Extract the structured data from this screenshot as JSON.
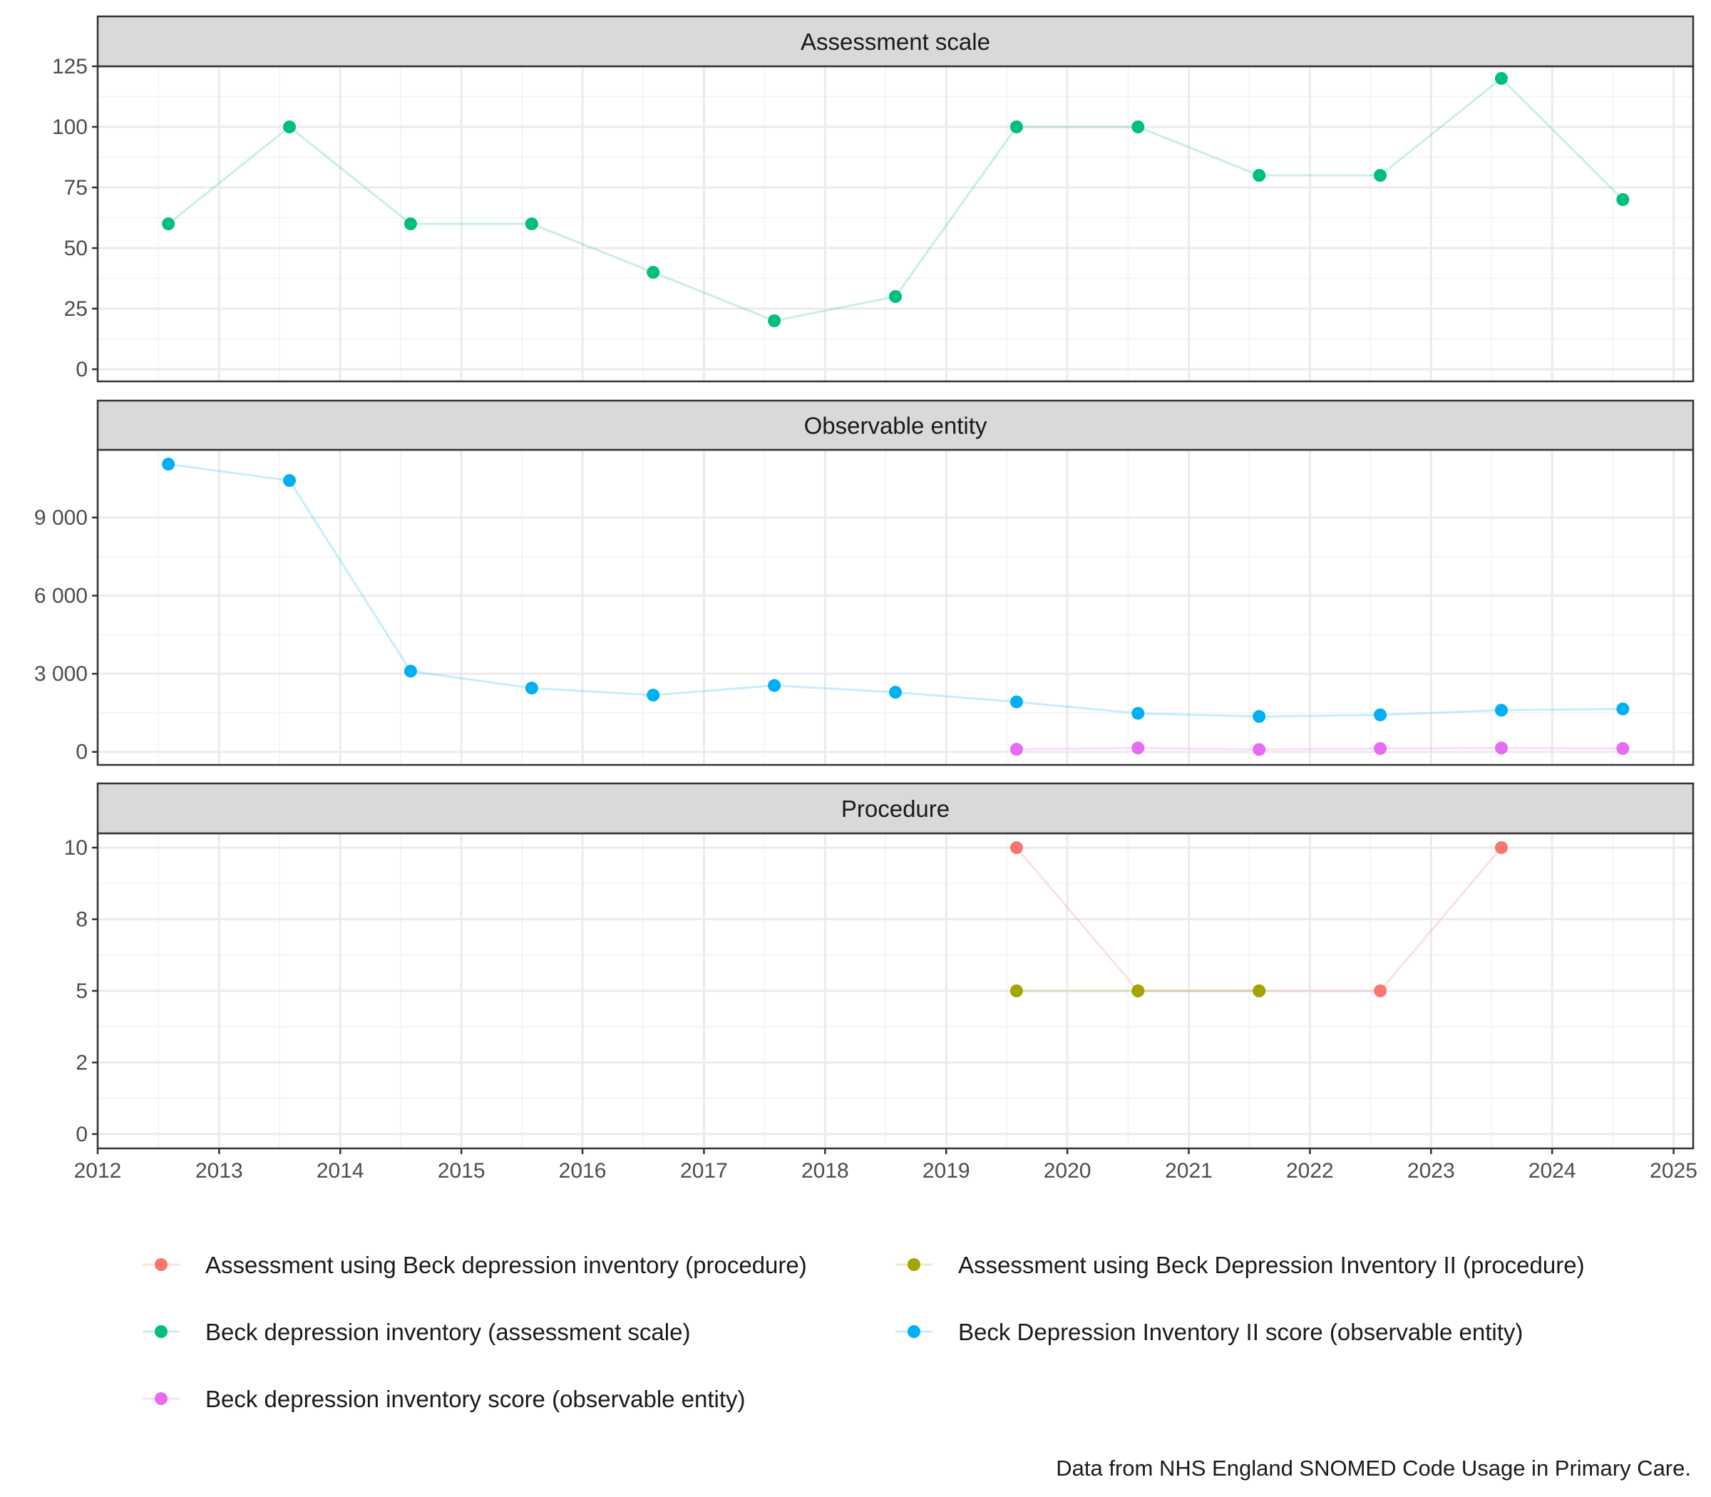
{
  "chart_data": {
    "type": "line",
    "caption": "Data from NHS England SNOMED Code Usage in Primary Care.",
    "x_axis": {
      "range": [
        "2012-01-01",
        "2025-03-01"
      ],
      "ticks": [
        "2012",
        "2013",
        "2014",
        "2015",
        "2016",
        "2017",
        "2018",
        "2019",
        "2020",
        "2021",
        "2022",
        "2023",
        "2024",
        "2025"
      ]
    },
    "legend": {
      "position": "bottom",
      "entries": [
        {
          "key": "a_bdi",
          "label": "Assessment using Beck depression inventory (procedure)"
        },
        {
          "key": "a_bdi2",
          "label": "Assessment using Beck Depression Inventory II (procedure)"
        },
        {
          "key": "bdi_scale",
          "label": "Beck depression inventory (assessment scale)"
        },
        {
          "key": "bdi2_score",
          "label": "Beck Depression Inventory II score (observable entity)"
        },
        {
          "key": "bdi_score",
          "label": "Beck depression inventory score (observable entity)"
        }
      ]
    },
    "colors": {
      "a_bdi": "#F8766D",
      "a_bdi2": "#A3A500",
      "bdi_scale": "#00BF7D",
      "bdi2_score": "#00B0F6",
      "bdi_score": "#E76BF3"
    },
    "grid": true,
    "panels": [
      {
        "title": "Assessment scale",
        "ylim": [
          -5,
          125
        ],
        "yticks": [
          0,
          25,
          50,
          75,
          100,
          125
        ],
        "ytick_labels": [
          "0",
          "25",
          "50",
          "75",
          "100",
          "125"
        ],
        "series": [
          {
            "key": "bdi_scale",
            "x": [
              "2012-08-01",
              "2013-08-01",
              "2014-08-01",
              "2015-08-01",
              "2016-08-01",
              "2017-08-01",
              "2018-08-01",
              "2019-08-01",
              "2020-08-01",
              "2021-08-01",
              "2022-08-01",
              "2023-08-01",
              "2024-08-01"
            ],
            "values": [
              60,
              100,
              60,
              60,
              40,
              20,
              30,
              100,
              100,
              80,
              80,
              120,
              70
            ]
          }
        ]
      },
      {
        "title": "Observable entity",
        "ylim": [
          -500,
          11600
        ],
        "yticks": [
          0,
          3000,
          6000,
          9000
        ],
        "ytick_labels": [
          "0",
          "3 000",
          "6 000",
          "9 000"
        ],
        "series": [
          {
            "key": "bdi2_score",
            "x": [
              "2012-08-01",
              "2013-08-01",
              "2014-08-01",
              "2015-08-01",
              "2016-08-01",
              "2017-08-01",
              "2018-08-01",
              "2019-08-01",
              "2020-08-01",
              "2021-08-01",
              "2022-08-01",
              "2023-08-01",
              "2024-08-01"
            ],
            "values": [
              11050,
              10420,
              3100,
              2450,
              2180,
              2550,
              2290,
              1920,
              1480,
              1360,
              1420,
              1600,
              1650
            ]
          },
          {
            "key": "bdi_score",
            "x": [
              "2019-08-01",
              "2020-08-01",
              "2021-08-01",
              "2022-08-01",
              "2023-08-01",
              "2024-08-01"
            ],
            "values": [
              100,
              150,
              90,
              130,
              150,
              130
            ]
          }
        ]
      },
      {
        "title": "Procedure",
        "ylim": [
          -0.5,
          10.5
        ],
        "yticks": [
          0,
          2.5,
          5,
          7.5,
          10
        ],
        "ytick_labels": [
          "0",
          "2",
          "5",
          "8",
          "10"
        ],
        "series": [
          {
            "key": "a_bdi",
            "x": [
              "2019-08-01",
              "2020-08-01",
              "2021-08-01",
              "2022-08-01",
              "2023-08-01"
            ],
            "values": [
              10,
              5,
              5,
              5,
              10
            ]
          },
          {
            "key": "a_bdi2",
            "x": [
              "2019-08-01",
              "2020-08-01",
              "2021-08-01"
            ],
            "values": [
              5,
              5,
              5
            ]
          }
        ]
      }
    ]
  }
}
